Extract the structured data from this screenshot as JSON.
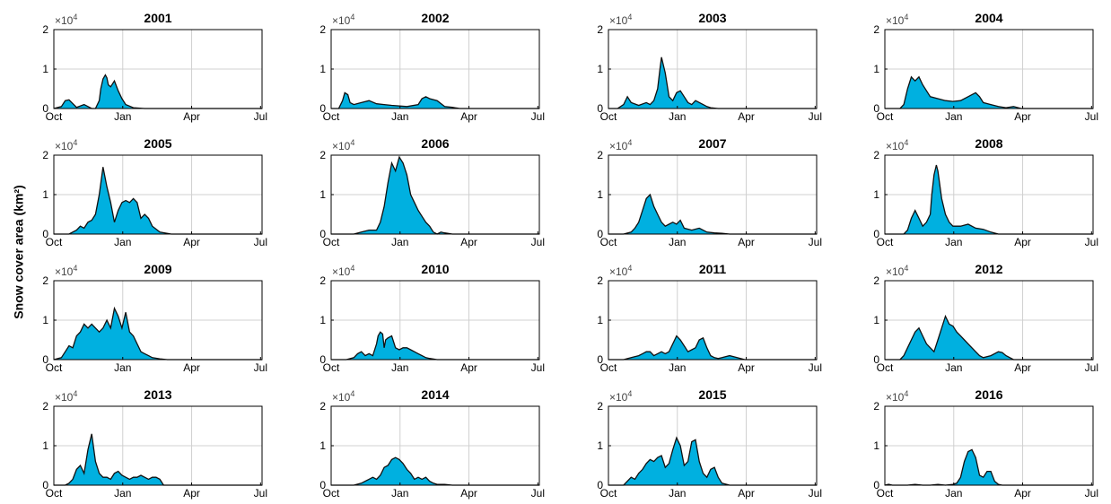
{
  "figure": {
    "ylabel": "Snow cover area (km²)",
    "fill_color": "#00b0e0",
    "line_color": "#111111",
    "grid_color": "#d0d0d0",
    "y_exponent_label": "×10",
    "y_exponent_power": "4"
  },
  "chart_data": [
    {
      "type": "area",
      "title": "2001",
      "xticklabels": [
        "Oct",
        "Jan",
        "Apr",
        "Jul"
      ],
      "yticklabels": [
        "0",
        "1",
        "2"
      ],
      "ylim": [
        0,
        2
      ],
      "grid": true,
      "x_day": [
        0,
        10,
        15,
        20,
        30,
        40,
        50,
        55,
        60,
        62,
        65,
        68,
        70,
        72,
        75,
        80,
        85,
        90,
        95,
        105,
        120,
        140,
        275
      ],
      "y_1e4": [
        0,
        0.05,
        0.2,
        0.22,
        0.03,
        0.1,
        0,
        0,
        0.2,
        0.5,
        0.75,
        0.85,
        0.78,
        0.6,
        0.55,
        0.7,
        0.45,
        0.25,
        0.1,
        0.02,
        0,
        0,
        0
      ]
    },
    {
      "type": "area",
      "title": "2002",
      "xticklabels": [
        "Oct",
        "Jan",
        "Apr",
        "Jul"
      ],
      "yticklabels": [
        "0",
        "1",
        "2"
      ],
      "ylim": [
        0,
        2
      ],
      "grid": true,
      "x_day": [
        0,
        10,
        15,
        18,
        22,
        25,
        30,
        40,
        50,
        60,
        70,
        80,
        100,
        115,
        120,
        125,
        130,
        140,
        150,
        160,
        170,
        275
      ],
      "y_1e4": [
        0,
        0,
        0.2,
        0.4,
        0.35,
        0.15,
        0.1,
        0.15,
        0.2,
        0.12,
        0.1,
        0.08,
        0.05,
        0.1,
        0.25,
        0.3,
        0.25,
        0.2,
        0.05,
        0.03,
        0,
        0
      ]
    },
    {
      "type": "area",
      "title": "2003",
      "xticklabels": [
        "Oct",
        "Jan",
        "Apr",
        "Jul"
      ],
      "yticklabels": [
        "0",
        "1",
        "2"
      ],
      "ylim": [
        0,
        2
      ],
      "grid": true,
      "x_day": [
        0,
        12,
        20,
        25,
        30,
        40,
        50,
        55,
        60,
        65,
        68,
        70,
        75,
        80,
        85,
        90,
        95,
        100,
        105,
        110,
        115,
        125,
        130,
        135,
        145,
        160,
        275
      ],
      "y_1e4": [
        0,
        0,
        0.1,
        0.3,
        0.15,
        0.08,
        0.15,
        0.1,
        0.2,
        0.5,
        1.0,
        1.3,
        0.9,
        0.3,
        0.2,
        0.4,
        0.45,
        0.3,
        0.15,
        0.1,
        0.2,
        0.1,
        0.05,
        0.02,
        0,
        0,
        0
      ]
    },
    {
      "type": "area",
      "title": "2004",
      "xticklabels": [
        "Oct",
        "Jan",
        "Apr",
        "Jul"
      ],
      "yticklabels": [
        "0",
        "1",
        "2"
      ],
      "ylim": [
        0,
        2
      ],
      "grid": true,
      "x_day": [
        0,
        20,
        25,
        30,
        35,
        40,
        45,
        50,
        55,
        60,
        70,
        80,
        90,
        100,
        110,
        115,
        120,
        125,
        130,
        140,
        150,
        160,
        170,
        180,
        275
      ],
      "y_1e4": [
        0,
        0,
        0.1,
        0.5,
        0.8,
        0.7,
        0.8,
        0.6,
        0.45,
        0.3,
        0.25,
        0.2,
        0.18,
        0.2,
        0.3,
        0.35,
        0.4,
        0.3,
        0.15,
        0.1,
        0.05,
        0.02,
        0.05,
        0,
        0
      ]
    },
    {
      "type": "area",
      "title": "2005",
      "xticklabels": [
        "Oct",
        "Jan",
        "Apr",
        "Jul"
      ],
      "yticklabels": [
        "0",
        "1",
        "2"
      ],
      "ylim": [
        0,
        2
      ],
      "grid": true,
      "x_day": [
        0,
        20,
        30,
        35,
        40,
        45,
        50,
        55,
        60,
        65,
        70,
        75,
        80,
        85,
        90,
        95,
        100,
        105,
        110,
        115,
        120,
        125,
        130,
        140,
        155,
        275
      ],
      "y_1e4": [
        0,
        0,
        0.1,
        0.2,
        0.15,
        0.3,
        0.35,
        0.5,
        1.0,
        1.7,
        1.2,
        0.8,
        0.3,
        0.6,
        0.8,
        0.85,
        0.8,
        0.9,
        0.8,
        0.4,
        0.5,
        0.4,
        0.2,
        0.05,
        0,
        0
      ]
    },
    {
      "type": "area",
      "title": "2006",
      "xticklabels": [
        "Oct",
        "Jan",
        "Apr",
        "Jul"
      ],
      "yticklabels": [
        "0",
        "1",
        "2"
      ],
      "ylim": [
        0,
        2
      ],
      "grid": true,
      "x_day": [
        0,
        30,
        40,
        50,
        60,
        65,
        70,
        75,
        80,
        85,
        90,
        95,
        100,
        105,
        110,
        115,
        120,
        125,
        130,
        135,
        140,
        145,
        150,
        160,
        170,
        275
      ],
      "y_1e4": [
        0,
        0,
        0.05,
        0.1,
        0.1,
        0.3,
        0.7,
        1.3,
        1.8,
        1.6,
        1.95,
        1.8,
        1.5,
        1.0,
        0.8,
        0.6,
        0.45,
        0.3,
        0.2,
        0.05,
        0,
        0.05,
        0.03,
        0,
        0,
        0
      ]
    },
    {
      "type": "area",
      "title": "2007",
      "xticklabels": [
        "Oct",
        "Jan",
        "Apr",
        "Jul"
      ],
      "yticklabels": [
        "0",
        "1",
        "2"
      ],
      "ylim": [
        0,
        2
      ],
      "grid": true,
      "x_day": [
        0,
        20,
        30,
        35,
        40,
        45,
        50,
        55,
        60,
        65,
        70,
        75,
        80,
        85,
        90,
        95,
        100,
        110,
        120,
        130,
        140,
        150,
        160,
        275
      ],
      "y_1e4": [
        0,
        0,
        0.05,
        0.15,
        0.3,
        0.6,
        0.9,
        1.0,
        0.7,
        0.5,
        0.3,
        0.2,
        0.25,
        0.3,
        0.25,
        0.35,
        0.15,
        0.1,
        0.15,
        0.05,
        0.03,
        0.02,
        0,
        0
      ]
    },
    {
      "type": "area",
      "title": "2008",
      "xticklabels": [
        "Oct",
        "Jan",
        "Apr",
        "Jul"
      ],
      "yticklabels": [
        "0",
        "1",
        "2"
      ],
      "ylim": [
        0,
        2
      ],
      "grid": true,
      "x_day": [
        0,
        25,
        30,
        35,
        40,
        45,
        50,
        55,
        60,
        62,
        65,
        68,
        70,
        75,
        80,
        85,
        90,
        100,
        110,
        120,
        130,
        140,
        150,
        275
      ],
      "y_1e4": [
        0,
        0,
        0.1,
        0.4,
        0.6,
        0.4,
        0.2,
        0.3,
        0.5,
        1.0,
        1.5,
        1.75,
        1.6,
        0.9,
        0.5,
        0.3,
        0.2,
        0.2,
        0.25,
        0.15,
        0.12,
        0.05,
        0,
        0
      ]
    },
    {
      "type": "area",
      "title": "2009",
      "xticklabels": [
        "Oct",
        "Jan",
        "Apr",
        "Jul"
      ],
      "yticklabels": [
        "0",
        "1",
        "2"
      ],
      "ylim": [
        0,
        2
      ],
      "grid": true,
      "x_day": [
        0,
        10,
        15,
        20,
        25,
        30,
        35,
        40,
        45,
        50,
        55,
        60,
        65,
        70,
        75,
        80,
        85,
        90,
        95,
        100,
        105,
        110,
        115,
        120,
        125,
        130,
        140,
        150,
        155,
        275
      ],
      "y_1e4": [
        0,
        0.05,
        0.2,
        0.35,
        0.3,
        0.6,
        0.7,
        0.9,
        0.8,
        0.9,
        0.8,
        0.7,
        0.8,
        1.0,
        0.8,
        1.3,
        1.1,
        0.8,
        1.2,
        0.7,
        0.6,
        0.4,
        0.2,
        0.15,
        0.1,
        0.05,
        0.02,
        0,
        0,
        0
      ]
    },
    {
      "type": "area",
      "title": "2010",
      "xticklabels": [
        "Oct",
        "Jan",
        "Apr",
        "Jul"
      ],
      "yticklabels": [
        "0",
        "1",
        "2"
      ],
      "ylim": [
        0,
        2
      ],
      "grid": true,
      "x_day": [
        0,
        20,
        30,
        35,
        40,
        45,
        50,
        55,
        60,
        62,
        65,
        68,
        70,
        72,
        75,
        80,
        85,
        90,
        95,
        100,
        105,
        110,
        115,
        120,
        125,
        130,
        140,
        275
      ],
      "y_1e4": [
        0,
        0,
        0.05,
        0.15,
        0.2,
        0.1,
        0.15,
        0.1,
        0.4,
        0.6,
        0.7,
        0.65,
        0.3,
        0.5,
        0.55,
        0.6,
        0.3,
        0.25,
        0.3,
        0.3,
        0.25,
        0.2,
        0.15,
        0.1,
        0.05,
        0.03,
        0,
        0
      ]
    },
    {
      "type": "area",
      "title": "2011",
      "xticklabels": [
        "Oct",
        "Jan",
        "Apr",
        "Jul"
      ],
      "yticklabels": [
        "0",
        "1",
        "2"
      ],
      "ylim": [
        0,
        2
      ],
      "grid": true,
      "x_day": [
        0,
        20,
        30,
        40,
        45,
        50,
        55,
        60,
        65,
        70,
        75,
        80,
        85,
        90,
        95,
        100,
        105,
        110,
        115,
        120,
        125,
        130,
        135,
        140,
        145,
        150,
        160,
        170,
        180,
        275
      ],
      "y_1e4": [
        0,
        0,
        0.05,
        0.1,
        0.15,
        0.2,
        0.2,
        0.1,
        0.15,
        0.2,
        0.15,
        0.2,
        0.4,
        0.6,
        0.5,
        0.35,
        0.2,
        0.25,
        0.3,
        0.5,
        0.55,
        0.3,
        0.1,
        0.05,
        0.03,
        0.05,
        0.1,
        0.05,
        0,
        0
      ]
    },
    {
      "type": "area",
      "title": "2012",
      "xticklabels": [
        "Oct",
        "Jan",
        "Apr",
        "Jul"
      ],
      "yticklabels": [
        "0",
        "1",
        "2"
      ],
      "ylim": [
        0,
        2
      ],
      "grid": true,
      "x_day": [
        0,
        20,
        25,
        30,
        35,
        40,
        45,
        50,
        55,
        60,
        65,
        70,
        75,
        80,
        85,
        90,
        95,
        100,
        105,
        110,
        115,
        120,
        125,
        130,
        140,
        150,
        155,
        160,
        170,
        275
      ],
      "y_1e4": [
        0,
        0,
        0.1,
        0.3,
        0.5,
        0.7,
        0.8,
        0.6,
        0.4,
        0.3,
        0.2,
        0.5,
        0.8,
        1.1,
        0.9,
        0.85,
        0.7,
        0.6,
        0.5,
        0.4,
        0.3,
        0.2,
        0.1,
        0.05,
        0.1,
        0.2,
        0.18,
        0.1,
        0,
        0
      ]
    },
    {
      "type": "area",
      "title": "2013",
      "xticklabels": [
        "Oct",
        "Jan",
        "Apr",
        "Jul"
      ],
      "yticklabels": [
        "0",
        "1",
        "2"
      ],
      "ylim": [
        0,
        2
      ],
      "grid": true,
      "x_day": [
        0,
        15,
        20,
        25,
        30,
        35,
        40,
        45,
        50,
        55,
        60,
        65,
        70,
        75,
        80,
        85,
        90,
        95,
        100,
        105,
        110,
        115,
        120,
        125,
        130,
        135,
        140,
        145,
        150,
        275
      ],
      "y_1e4": [
        0,
        0,
        0.05,
        0.15,
        0.4,
        0.5,
        0.3,
        0.9,
        1.3,
        0.6,
        0.3,
        0.2,
        0.2,
        0.15,
        0.3,
        0.35,
        0.25,
        0.2,
        0.15,
        0.2,
        0.2,
        0.25,
        0.2,
        0.15,
        0.2,
        0.2,
        0.15,
        0,
        0,
        0
      ]
    },
    {
      "type": "area",
      "title": "2014",
      "xticklabels": [
        "Oct",
        "Jan",
        "Apr",
        "Jul"
      ],
      "yticklabels": [
        "0",
        "1",
        "2"
      ],
      "ylim": [
        0,
        2
      ],
      "grid": true,
      "x_day": [
        0,
        30,
        40,
        45,
        50,
        55,
        60,
        65,
        70,
        75,
        80,
        85,
        90,
        95,
        100,
        105,
        110,
        115,
        120,
        125,
        130,
        135,
        140,
        150,
        160,
        275
      ],
      "y_1e4": [
        0,
        0,
        0.05,
        0.1,
        0.15,
        0.2,
        0.15,
        0.25,
        0.45,
        0.5,
        0.65,
        0.7,
        0.65,
        0.55,
        0.4,
        0.3,
        0.15,
        0.2,
        0.15,
        0.2,
        0.1,
        0.05,
        0.02,
        0.02,
        0,
        0
      ]
    },
    {
      "type": "area",
      "title": "2015",
      "xticklabels": [
        "Oct",
        "Jan",
        "Apr",
        "Jul"
      ],
      "yticklabels": [
        "0",
        "1",
        "2"
      ],
      "ylim": [
        0,
        2
      ],
      "grid": true,
      "x_day": [
        0,
        20,
        25,
        30,
        35,
        40,
        45,
        50,
        55,
        60,
        65,
        70,
        75,
        80,
        85,
        90,
        95,
        100,
        105,
        110,
        115,
        120,
        125,
        130,
        135,
        140,
        145,
        150,
        160,
        275
      ],
      "y_1e4": [
        0,
        0,
        0.1,
        0.2,
        0.15,
        0.3,
        0.4,
        0.55,
        0.65,
        0.6,
        0.7,
        0.75,
        0.45,
        0.55,
        0.9,
        1.2,
        1.0,
        0.5,
        0.6,
        1.1,
        1.15,
        0.6,
        0.3,
        0.2,
        0.4,
        0.45,
        0.2,
        0.05,
        0,
        0
      ]
    },
    {
      "type": "area",
      "title": "2016",
      "xticklabels": [
        "Oct",
        "Jan",
        "Apr",
        "Jul"
      ],
      "yticklabels": [
        "0",
        "1",
        "2"
      ],
      "ylim": [
        0,
        2
      ],
      "grid": true,
      "x_day": [
        0,
        5,
        10,
        30,
        40,
        50,
        60,
        70,
        80,
        90,
        95,
        100,
        105,
        110,
        115,
        120,
        125,
        130,
        135,
        140,
        145,
        150,
        155,
        160,
        275
      ],
      "y_1e4": [
        0,
        0.02,
        0,
        0,
        0.02,
        0,
        0,
        0.02,
        0,
        0.02,
        0.05,
        0.2,
        0.6,
        0.85,
        0.9,
        0.7,
        0.25,
        0.2,
        0.35,
        0.35,
        0.1,
        0.02,
        0,
        0,
        0
      ]
    }
  ]
}
